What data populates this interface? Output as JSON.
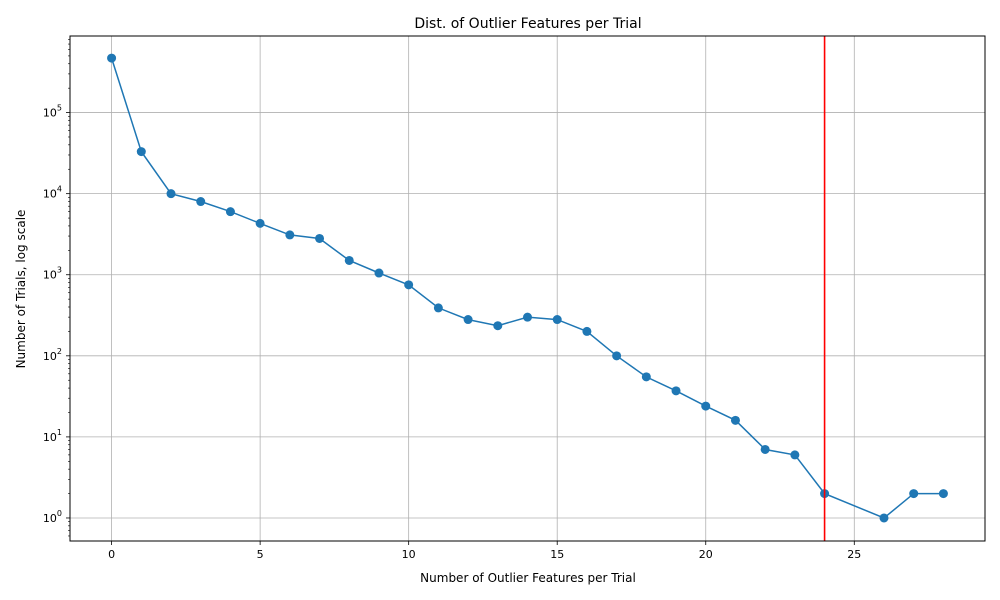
{
  "chart_data": {
    "type": "line",
    "title": "Dist. of Outlier Features per Trial",
    "xlabel": "Number of Outlier Features per Trial",
    "ylabel": "Number of Trials, log scale",
    "yscale": "log",
    "xlim": [
      -1.4,
      29.4
    ],
    "ylim": [
      0.52,
      880000
    ],
    "grid": true,
    "xticks": [
      0,
      5,
      10,
      15,
      20,
      25
    ],
    "xtick_labels": [
      "0",
      "5",
      "10",
      "15",
      "20",
      "25"
    ],
    "yticks": [
      1,
      10,
      100,
      1000,
      10000,
      100000
    ],
    "ytick_labels": [
      {
        "base": "10",
        "exp": "0"
      },
      {
        "base": "10",
        "exp": "1"
      },
      {
        "base": "10",
        "exp": "2"
      },
      {
        "base": "10",
        "exp": "3"
      },
      {
        "base": "10",
        "exp": "4"
      },
      {
        "base": "10",
        "exp": "5"
      }
    ],
    "series": [
      {
        "color": "#1f77b4",
        "marker": "circle",
        "x": [
          0,
          1,
          2,
          3,
          4,
          5,
          6,
          7,
          8,
          9,
          10,
          11,
          12,
          13,
          14,
          15,
          16,
          17,
          18,
          19,
          20,
          21,
          22,
          23,
          24,
          26,
          27,
          28
        ],
        "y": [
          470000,
          33000,
          10000,
          8000,
          6000,
          4300,
          3100,
          2800,
          1500,
          1050,
          750,
          390,
          280,
          235,
          300,
          280,
          200,
          100,
          55,
          37,
          24,
          16,
          7,
          6,
          2,
          1,
          2,
          2
        ]
      }
    ],
    "vline": {
      "x": 24,
      "color": "#ff0000"
    }
  }
}
